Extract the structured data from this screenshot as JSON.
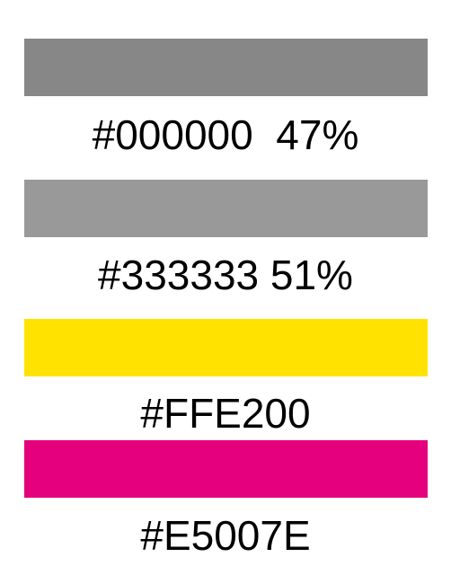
{
  "swatches": [
    {
      "color": "#878787",
      "label": "#000000  47%"
    },
    {
      "color": "#999999",
      "label": "#333333 51%"
    },
    {
      "color": "#FFE200",
      "label": "#FFE200"
    },
    {
      "color": "#E5007E",
      "label": "#E5007E"
    }
  ]
}
